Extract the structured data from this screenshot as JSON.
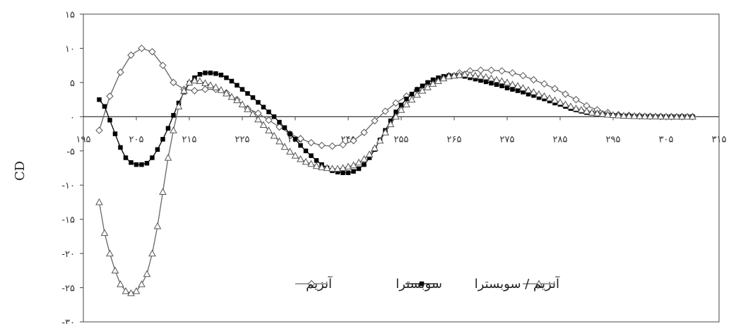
{
  "chart_data": {
    "type": "line",
    "title": "",
    "xlabel": "",
    "ylabel": "CD",
    "xlim": [
      195,
      315
    ],
    "ylim": [
      -30,
      15
    ],
    "x_ticks": [
      195,
      205,
      215,
      225,
      235,
      245,
      255,
      265,
      275,
      285,
      295,
      305,
      315
    ],
    "x_tick_labels": [
      "۱۹۵",
      "۲۰۵",
      "۲۱۵",
      "۲۲۵",
      "۲۳۵",
      "۲۴۵",
      "۲۵۵",
      "۲۶۵",
      "۲۷۵",
      "۲۸۵",
      "۲۹۵",
      "۳۰۵",
      "۳۱۵"
    ],
    "y_ticks": [
      15,
      10,
      5,
      0,
      -5,
      -10,
      -15,
      -20,
      -25,
      -30
    ],
    "y_tick_labels": [
      "۱۵",
      "۱۰",
      "۵",
      "۰",
      "-۵",
      "-۱۰",
      "-۱۵",
      "-۲۰",
      "-۲۵",
      "-۳۰"
    ],
    "grid": false,
    "legend_position": "bottom-right",
    "series": [
      {
        "name": "آنزیم",
        "marker": "diamond-open",
        "x": [
          198,
          200,
          202,
          204,
          206,
          208,
          210,
          212,
          214,
          216,
          218,
          220,
          222,
          224,
          226,
          228,
          230,
          232,
          234,
          236,
          238,
          240,
          242,
          244,
          246,
          248,
          250,
          252,
          254,
          256,
          258,
          260,
          262,
          264,
          266,
          268,
          270,
          272,
          274,
          276,
          278,
          280,
          282,
          284,
          286,
          288,
          290,
          292,
          294,
          296,
          298,
          300,
          302,
          304,
          306,
          308,
          310
        ],
        "y": [
          -2,
          3,
          6.5,
          9,
          10,
          9.5,
          7.5,
          5,
          4,
          3.8,
          4,
          4,
          3.5,
          2.5,
          1.2,
          0.5,
          -0.5,
          -1.5,
          -2.5,
          -3.2,
          -3.8,
          -4.2,
          -4.3,
          -4.1,
          -3.5,
          -2.3,
          -0.6,
          0.8,
          2,
          3,
          3.9,
          4.7,
          5.4,
          6,
          6.4,
          6.7,
          6.8,
          6.8,
          6.7,
          6.4,
          6,
          5.4,
          4.8,
          4.1,
          3.3,
          2.5,
          1.6,
          1,
          0.6,
          0.3,
          0.2,
          0.1,
          0.05,
          0.02,
          0,
          0,
          0
        ]
      },
      {
        "name": "سوبسترا",
        "marker": "square-filled",
        "x": [
          198,
          199,
          200,
          201,
          202,
          203,
          204,
          205,
          206,
          207,
          208,
          209,
          210,
          211,
          212,
          213,
          214,
          215,
          216,
          217,
          218,
          219,
          220,
          221,
          222,
          223,
          224,
          225,
          226,
          227,
          228,
          229,
          230,
          231,
          232,
          233,
          234,
          235,
          236,
          237,
          238,
          239,
          240,
          241,
          242,
          243,
          244,
          245,
          246,
          247,
          248,
          249,
          250,
          251,
          252,
          253,
          254,
          255,
          256,
          257,
          258,
          259,
          260,
          261,
          262,
          263,
          264,
          265,
          266,
          267,
          268,
          269,
          270,
          271,
          272,
          273,
          274,
          275,
          276,
          277,
          278,
          279,
          280,
          281,
          282,
          283,
          284,
          285,
          286,
          287,
          288,
          289,
          290,
          291,
          292,
          293,
          294,
          295,
          296,
          297,
          298,
          299,
          300,
          301,
          302,
          303,
          304,
          305,
          306,
          307,
          308,
          309,
          310
        ],
        "y": [
          2.5,
          1.5,
          -0.5,
          -2.5,
          -4.5,
          -6,
          -6.7,
          -7,
          -7,
          -6.8,
          -6,
          -4.8,
          -3.3,
          -1.7,
          0.2,
          2,
          3.6,
          4.9,
          5.7,
          6.2,
          6.4,
          6.4,
          6.3,
          6.1,
          5.7,
          5.2,
          4.6,
          4,
          3.4,
          2.8,
          2.1,
          1.4,
          0.7,
          0,
          -0.8,
          -1.6,
          -2.5,
          -3.3,
          -4.2,
          -5,
          -5.7,
          -6.4,
          -7,
          -7.5,
          -7.9,
          -8.1,
          -8.2,
          -8.2,
          -8,
          -7.6,
          -7,
          -6,
          -4.8,
          -3.4,
          -2,
          -0.6,
          0.7,
          1.7,
          2.6,
          3.3,
          4,
          4.5,
          5,
          5.4,
          5.7,
          5.9,
          6,
          6,
          6,
          5.9,
          5.7,
          5.5,
          5.3,
          5.1,
          4.9,
          4.7,
          4.5,
          4.2,
          4,
          3.8,
          3.6,
          3.3,
          3.1,
          2.8,
          2.6,
          2.3,
          2,
          1.8,
          1.5,
          1.2,
          1,
          0.8,
          0.6,
          0.5,
          0.4,
          0.3,
          0.25,
          0.2,
          0.15,
          0.12,
          0.1,
          0.08,
          0.06,
          0.05,
          0.04,
          0.03,
          0.02,
          0.01,
          0,
          0,
          0,
          0,
          0
        ]
      },
      {
        "name": "آنزیم / سوبسترا",
        "marker": "triangle-open",
        "x": [
          198,
          199,
          200,
          201,
          202,
          203,
          204,
          205,
          206,
          207,
          208,
          209,
          210,
          211,
          212,
          213,
          214,
          215,
          216,
          217,
          218,
          219,
          220,
          221,
          222,
          223,
          224,
          225,
          226,
          227,
          228,
          229,
          230,
          231,
          232,
          233,
          234,
          235,
          236,
          237,
          238,
          239,
          240,
          241,
          242,
          243,
          244,
          245,
          246,
          247,
          248,
          249,
          250,
          251,
          252,
          253,
          254,
          255,
          256,
          257,
          258,
          259,
          260,
          261,
          262,
          263,
          264,
          265,
          266,
          267,
          268,
          269,
          270,
          271,
          272,
          273,
          274,
          275,
          276,
          277,
          278,
          279,
          280,
          281,
          282,
          283,
          284,
          285,
          286,
          287,
          288,
          289,
          290,
          291,
          292,
          293,
          294,
          295,
          296,
          297,
          298,
          299,
          300,
          301,
          302,
          303,
          304,
          305,
          306,
          307,
          308,
          309,
          310
        ],
        "y": [
          -12.5,
          -17,
          -20,
          -22.5,
          -24.5,
          -25.5,
          -25.8,
          -25.5,
          -24.5,
          -23,
          -20,
          -16,
          -11,
          -6,
          -2,
          1.5,
          3.8,
          5,
          5.3,
          5.2,
          4.9,
          4.6,
          4.3,
          3.9,
          3.4,
          2.9,
          2.4,
          1.8,
          1.1,
          0.4,
          -0.4,
          -1.2,
          -2,
          -2.8,
          -3.6,
          -4.4,
          -5.1,
          -5.7,
          -6.2,
          -6.6,
          -6.9,
          -7.2,
          -7.4,
          -7.5,
          -7.6,
          -7.6,
          -7.5,
          -7.3,
          -7.1,
          -6.7,
          -6.2,
          -5.5,
          -4.6,
          -3.5,
          -2.3,
          -1.1,
          0,
          1,
          1.8,
          2.5,
          3.2,
          3.8,
          4.3,
          4.8,
          5.2,
          5.6,
          5.9,
          6,
          6.1,
          6.2,
          6.1,
          6,
          5.9,
          5.8,
          5.6,
          5.4,
          5.2,
          5,
          4.7,
          4.5,
          4.2,
          3.9,
          3.6,
          3.3,
          3,
          2.7,
          2.4,
          2.1,
          1.8,
          1.5,
          1.2,
          1,
          0.8,
          0.6,
          0.5,
          0.4,
          0.3,
          0.25,
          0.2,
          0.15,
          0.12,
          0.1,
          0.08,
          0.06,
          0.05,
          0.04,
          0.03,
          0.02,
          0.01,
          0,
          0,
          0,
          0
        ]
      }
    ]
  }
}
